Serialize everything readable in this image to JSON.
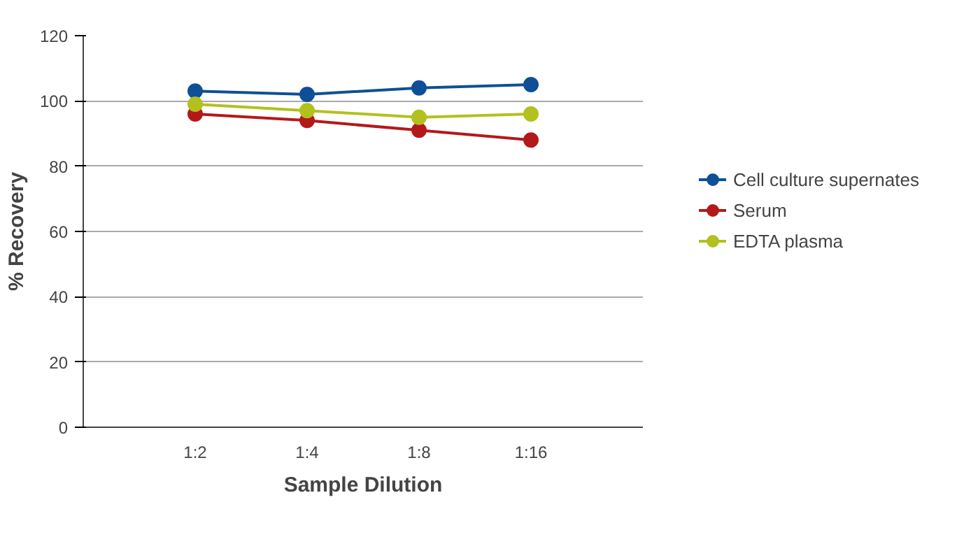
{
  "chart_data": {
    "type": "line",
    "xlabel": "Sample Dilution",
    "ylabel": "% Recovery",
    "categories": [
      "1:2",
      "1:4",
      "1:8",
      "1:16"
    ],
    "ylim": [
      0,
      120
    ],
    "yticks": [
      0,
      20,
      40,
      60,
      80,
      100,
      120
    ],
    "grid": "y",
    "legend": "right",
    "marker": "circle",
    "line_style": "solid",
    "series": [
      {
        "name": "Cell culture supernates",
        "color": "#0f4f96",
        "values": [
          103,
          102,
          104,
          105
        ]
      },
      {
        "name": "Serum",
        "color": "#b3191b",
        "values": [
          96,
          94,
          91,
          88
        ]
      },
      {
        "name": "EDTA plasma",
        "color": "#b2c11d",
        "values": [
          99,
          97,
          95,
          96
        ]
      }
    ]
  }
}
